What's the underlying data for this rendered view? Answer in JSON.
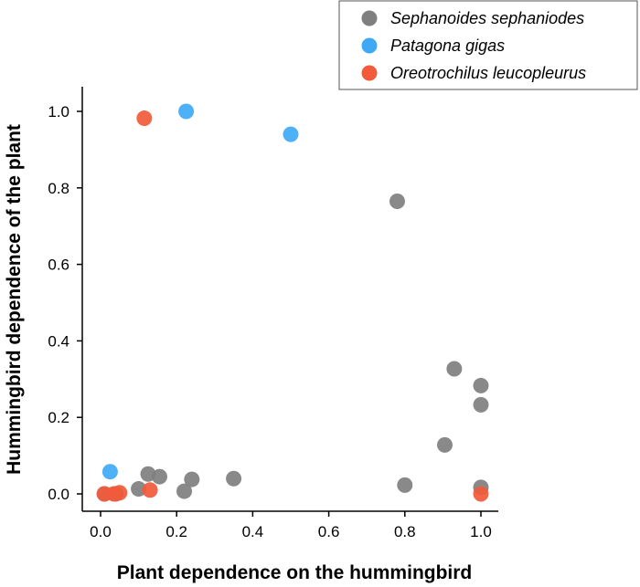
{
  "chart_data": {
    "type": "scatter",
    "title": "",
    "xlabel": "Plant dependence on the hummingbird",
    "ylabel": "Hummingbird dependence of the plant",
    "xlim": [
      0,
      1
    ],
    "ylim": [
      0,
      1
    ],
    "xticks": [
      "0.0",
      "0.2",
      "0.4",
      "0.6",
      "0.8",
      "1.0"
    ],
    "yticks": [
      "0.0",
      "0.2",
      "0.4",
      "0.6",
      "0.8",
      "1.0"
    ],
    "legend_position": "top-right",
    "series": [
      {
        "name": "Sephanoides sephaniodes",
        "color": "#7f7f7f",
        "points": [
          {
            "x": 0.01,
            "y": 0.0
          },
          {
            "x": 0.04,
            "y": 0.0
          },
          {
            "x": 0.1,
            "y": 0.013
          },
          {
            "x": 0.125,
            "y": 0.052
          },
          {
            "x": 0.155,
            "y": 0.045
          },
          {
            "x": 0.22,
            "y": 0.007
          },
          {
            "x": 0.24,
            "y": 0.038
          },
          {
            "x": 0.35,
            "y": 0.04
          },
          {
            "x": 0.78,
            "y": 0.765
          },
          {
            "x": 0.8,
            "y": 0.023
          },
          {
            "x": 0.905,
            "y": 0.128
          },
          {
            "x": 0.93,
            "y": 0.327
          },
          {
            "x": 1.0,
            "y": 0.283
          },
          {
            "x": 1.0,
            "y": 0.233
          },
          {
            "x": 1.0,
            "y": 0.017
          }
        ]
      },
      {
        "name": "Patagona gigas",
        "color": "#3fa9f5",
        "points": [
          {
            "x": 0.025,
            "y": 0.058
          },
          {
            "x": 0.225,
            "y": 1.0
          },
          {
            "x": 0.5,
            "y": 0.94
          }
        ]
      },
      {
        "name": "Oreotrochilus leucopleurus",
        "color": "#f15a3a",
        "points": [
          {
            "x": 0.115,
            "y": 0.982
          },
          {
            "x": 0.13,
            "y": 0.01
          },
          {
            "x": 0.01,
            "y": 0.0
          },
          {
            "x": 0.035,
            "y": 0.0
          },
          {
            "x": 0.05,
            "y": 0.003
          },
          {
            "x": 1.0,
            "y": 0.0
          }
        ]
      }
    ]
  }
}
